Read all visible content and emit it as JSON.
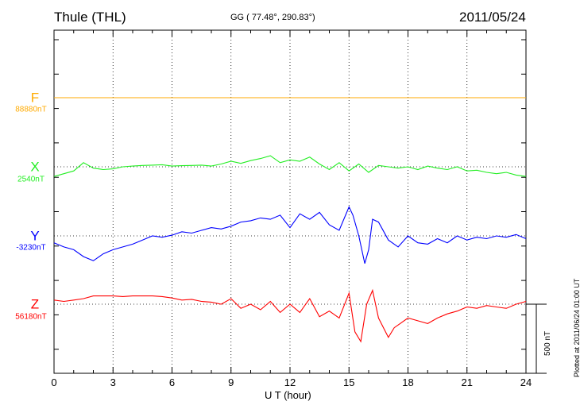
{
  "header": {
    "station": "Thule (THL)",
    "coords": "GG ( 77.48°, 290.83°)",
    "date": "2011/05/24"
  },
  "plotted_note": "Plotted at 2011/06/24 01:00 UT",
  "scale_label": "500 nT",
  "chart_data": {
    "type": "line",
    "xlabel": "U T (hour)",
    "xlim": [
      0,
      24
    ],
    "xticks": [
      0,
      3,
      6,
      9,
      12,
      15,
      18,
      21,
      24
    ],
    "xtick_labels": [
      "0",
      "3",
      "6",
      "9",
      "12",
      "15",
      "18",
      "21",
      "24"
    ],
    "grid": "dotted vertical every 3 h; dotted baseline per component",
    "scale_bar_nT": 500,
    "series": [
      {
        "name": "F",
        "base_label": "88880nT",
        "color": "#ffaa00",
        "x": [
          0,
          24
        ],
        "y": [
          0,
          0
        ]
      },
      {
        "name": "X",
        "base_label": "2540nT",
        "color": "#22ee22",
        "x": [
          0,
          0.5,
          1,
          1.5,
          2,
          2.5,
          3,
          3.5,
          4,
          4.5,
          5,
          5.5,
          6,
          6.5,
          7,
          7.5,
          8,
          8.5,
          9,
          9.5,
          10,
          10.5,
          11,
          11.5,
          12,
          12.5,
          13,
          13.5,
          14,
          14.5,
          15,
          15.5,
          16,
          16.5,
          17,
          17.5,
          18,
          18.5,
          19,
          19.5,
          20,
          20.5,
          21,
          21.5,
          22,
          22.5,
          23,
          23.5,
          24
        ],
        "y": [
          -70,
          -50,
          -30,
          30,
          -10,
          -20,
          -15,
          0,
          5,
          10,
          12,
          15,
          5,
          8,
          10,
          12,
          5,
          20,
          40,
          25,
          45,
          60,
          80,
          30,
          50,
          40,
          70,
          20,
          -20,
          30,
          -30,
          20,
          -40,
          10,
          0,
          -10,
          0,
          -20,
          5,
          -10,
          -20,
          0,
          -30,
          -25,
          -40,
          -50,
          -40,
          -60,
          -70
        ]
      },
      {
        "name": "Y",
        "base_label": "-3230nT",
        "color": "#0000ff",
        "x": [
          0,
          0.5,
          1,
          1.5,
          2,
          2.5,
          3,
          3.5,
          4,
          4.5,
          5,
          5.5,
          6,
          6.5,
          7,
          7.5,
          8,
          8.5,
          9,
          9.5,
          10,
          10.5,
          11,
          11.5,
          12,
          12.5,
          13,
          13.5,
          14,
          14.5,
          15,
          15.2,
          15.5,
          15.8,
          16,
          16.2,
          16.5,
          17,
          17.5,
          18,
          18.5,
          19,
          19.5,
          20,
          20.5,
          21,
          21.5,
          22,
          22.5,
          23,
          23.5,
          24
        ],
        "y": [
          -50,
          -80,
          -100,
          -150,
          -180,
          -130,
          -100,
          -80,
          -60,
          -30,
          0,
          -10,
          5,
          30,
          20,
          40,
          60,
          50,
          70,
          100,
          110,
          130,
          120,
          150,
          60,
          160,
          120,
          170,
          80,
          40,
          210,
          150,
          0,
          -200,
          -100,
          120,
          100,
          -30,
          -80,
          0,
          -50,
          -60,
          -20,
          -50,
          0,
          -30,
          -10,
          -20,
          0,
          -10,
          10,
          -20
        ]
      },
      {
        "name": "Z",
        "base_label": "56180nT",
        "color": "#ff0000",
        "x": [
          0,
          0.5,
          1,
          1.5,
          2,
          2.5,
          3,
          3.5,
          4,
          4.5,
          5,
          5.5,
          6,
          6.5,
          7,
          7.5,
          8,
          8.5,
          9,
          9.5,
          10,
          10.5,
          11,
          11.5,
          12,
          12.5,
          13,
          13.5,
          14,
          14.5,
          15,
          15.3,
          15.6,
          15.9,
          16.2,
          16.5,
          17,
          17.3,
          17.6,
          18,
          18.5,
          19,
          19.5,
          20,
          20.5,
          21,
          21.5,
          22,
          22.5,
          23,
          23.5,
          24
        ],
        "y": [
          30,
          20,
          30,
          40,
          60,
          60,
          60,
          55,
          60,
          60,
          60,
          55,
          45,
          30,
          35,
          20,
          15,
          0,
          40,
          -30,
          0,
          -40,
          20,
          -60,
          0,
          -60,
          40,
          -90,
          -50,
          -100,
          80,
          -200,
          -270,
          0,
          100,
          -100,
          -240,
          -170,
          -140,
          -100,
          -120,
          -140,
          -100,
          -70,
          -50,
          -20,
          -30,
          -10,
          -20,
          -30,
          0,
          20
        ]
      }
    ]
  }
}
